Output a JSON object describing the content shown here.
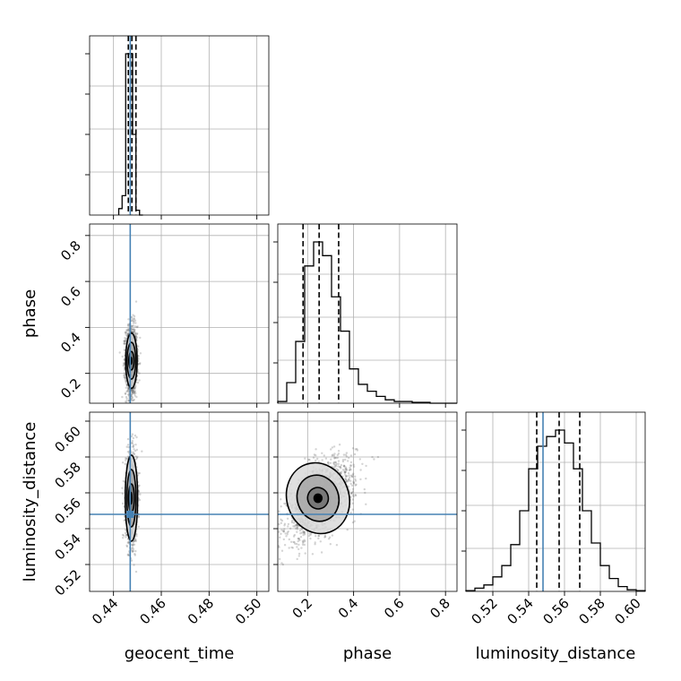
{
  "colors": {
    "truth": "#4682b4",
    "hist": "#000000",
    "grid": "#b0b0b0",
    "scatter": "#555555"
  },
  "chart_data": {
    "type": "corner",
    "parameters": [
      {
        "name": "geocent_time",
        "label": "geocent_time",
        "range": [
          0.43,
          0.505
        ],
        "ticks": [
          "0.44",
          "0.46",
          "0.48",
          "0.50"
        ],
        "truth": 0.447,
        "quantiles": [
          0.4462,
          0.4477,
          0.4494
        ]
      },
      {
        "name": "phase",
        "label": "phase",
        "range": [
          0.07,
          0.85
        ],
        "ticks": [
          "0.2",
          "0.4",
          "0.6",
          "0.8"
        ],
        "truth": null,
        "quantiles": [
          0.18,
          0.25,
          0.335
        ]
      },
      {
        "name": "luminosity_distance",
        "label": "luminosity_distance",
        "range": [
          0.505,
          0.605
        ],
        "ticks": [
          "0.52",
          "0.54",
          "0.56",
          "0.58",
          "0.60"
        ],
        "truth": 0.548,
        "quantiles": [
          0.5445,
          0.557,
          0.5685
        ]
      }
    ],
    "histograms": [
      {
        "param": "geocent_time",
        "bins": [
          0.4422,
          0.4436,
          0.4451,
          0.4465,
          0.448,
          0.4494,
          0.4509,
          0.4523
        ],
        "counts": [
          0.04,
          0.12,
          1.0,
          1.0,
          0.5,
          0.03,
          0.0
        ]
      },
      {
        "param": "phase",
        "bins": [
          0.07,
          0.109,
          0.148,
          0.187,
          0.226,
          0.265,
          0.304,
          0.343,
          0.382,
          0.421,
          0.46,
          0.499,
          0.538,
          0.577,
          0.616,
          0.655,
          0.694,
          0.733,
          0.772,
          0.811,
          0.85
        ],
        "counts": [
          0.01,
          0.12,
          0.36,
          0.8,
          0.94,
          0.86,
          0.62,
          0.42,
          0.2,
          0.11,
          0.07,
          0.04,
          0.02,
          0.01,
          0.01,
          0.005,
          0.005,
          0.0,
          0.0,
          0.0
        ]
      },
      {
        "param": "luminosity_distance",
        "bins": [
          0.505,
          0.51,
          0.515,
          0.52,
          0.525,
          0.53,
          0.535,
          0.54,
          0.545,
          0.55,
          0.555,
          0.56,
          0.565,
          0.57,
          0.575,
          0.58,
          0.585,
          0.59,
          0.595,
          0.6,
          0.605
        ],
        "counts": [
          0.005,
          0.02,
          0.04,
          0.09,
          0.16,
          0.29,
          0.5,
          0.76,
          0.9,
          0.96,
          1.0,
          0.92,
          0.76,
          0.5,
          0.3,
          0.16,
          0.08,
          0.03,
          0.01,
          0.005
        ]
      }
    ],
    "pairs": [
      {
        "x": "geocent_time",
        "y": "phase",
        "center": [
          0.4475,
          0.255
        ],
        "spread": [
          0.0012,
          0.075
        ],
        "corr": 0.0,
        "contours": [
          [
            0.0011,
            0.04
          ],
          [
            0.0018,
            0.08
          ],
          [
            0.0024,
            0.12
          ]
        ]
      },
      {
        "x": "geocent_time",
        "y": "luminosity_distance",
        "center": [
          0.4475,
          0.557
        ],
        "spread": [
          0.0012,
          0.012
        ],
        "corr": 0.0,
        "contours": [
          [
            0.0012,
            0.008
          ],
          [
            0.0019,
            0.016
          ],
          [
            0.0026,
            0.024
          ]
        ]
      },
      {
        "x": "phase",
        "y": "luminosity_distance",
        "center": [
          0.245,
          0.557
        ],
        "spread": [
          0.08,
          0.011
        ],
        "corr": 0.55,
        "contours": [
          [
            0.045,
            0.006
          ],
          [
            0.09,
            0.013
          ],
          [
            0.135,
            0.02
          ]
        ]
      }
    ],
    "grid": true
  }
}
